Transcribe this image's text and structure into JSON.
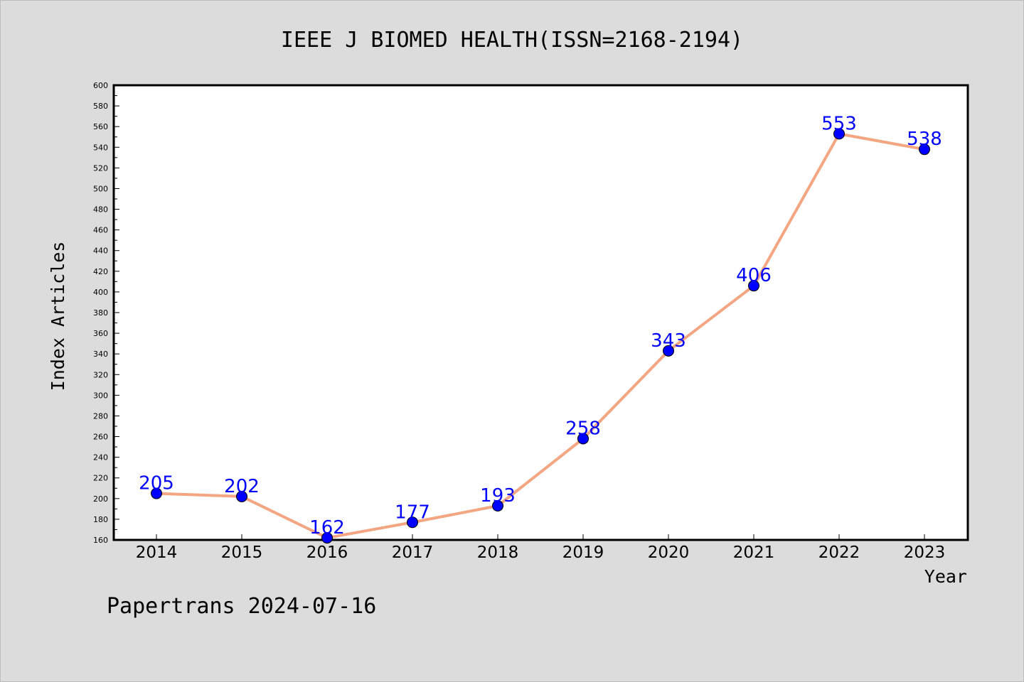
{
  "chart_data": {
    "type": "line",
    "title": "IEEE J BIOMED HEALTH(ISSN=2168-2194)",
    "xlabel": "Year",
    "ylabel": "Index Articles",
    "categories": [
      "2014",
      "2015",
      "2016",
      "2017",
      "2018",
      "2019",
      "2020",
      "2021",
      "2022",
      "2023"
    ],
    "series": [
      {
        "values": [
          205,
          202,
          162,
          177,
          193,
          258,
          343,
          406,
          553,
          538
        ]
      }
    ],
    "data_labels": [
      "205",
      "202",
      "162",
      "177",
      "193",
      "258",
      "343",
      "406",
      "553",
      "538"
    ],
    "ylim": [
      160,
      600
    ],
    "ytick_step": 20,
    "grid": false,
    "line_color": "#f4a582",
    "marker_color": "#0000ff",
    "label_color": "#0000ff",
    "plot_background": "#ffffff",
    "page_background": "#dcdcdc"
  },
  "footer": {
    "text": "Papertrans 2024-07-16"
  }
}
